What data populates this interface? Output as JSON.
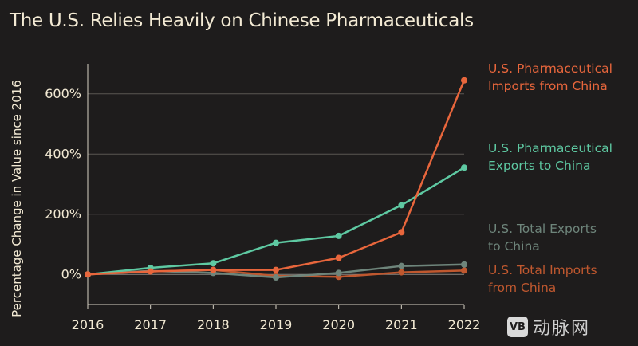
{
  "title": "The U.S. Relies Heavily on Chinese Pharmaceuticals",
  "watermark": {
    "logo": "VB",
    "text": "动脉网"
  },
  "chart_data": {
    "type": "line",
    "title": "The U.S. Relies Heavily on Chinese Pharmaceuticals",
    "xlabel": "",
    "ylabel": "Percentage Change in Value since 2016",
    "x": [
      2016,
      2017,
      2018,
      2019,
      2020,
      2021,
      2022
    ],
    "x_tick_labels": [
      "2016",
      "2017",
      "2018",
      "2019",
      "2020",
      "2021",
      "2022"
    ],
    "ylim": [
      -100,
      700
    ],
    "y_ticks": [
      0,
      200,
      400,
      600
    ],
    "y_tick_labels": [
      "0%",
      "200%",
      "400%",
      "600%"
    ],
    "grid": true,
    "legend_position": "right",
    "series": [
      {
        "name": "U.S. Pharmaceutical Imports from China",
        "label_lines": [
          "U.S. Pharmaceutical",
          "Imports from China"
        ],
        "color": "#e8663c",
        "values": [
          0,
          10,
          15,
          15,
          55,
          140,
          645
        ]
      },
      {
        "name": "U.S. Pharmaceutical Exports to China",
        "label_lines": [
          "U.S. Pharmaceutical",
          "Exports to China"
        ],
        "color": "#5ec9a2",
        "values": [
          0,
          22,
          37,
          105,
          128,
          230,
          355
        ]
      },
      {
        "name": "U.S. Total Exports to China",
        "label_lines": [
          "U.S. Total Exports",
          "to China"
        ],
        "color": "#6e857b",
        "values": [
          0,
          12,
          5,
          -10,
          5,
          28,
          33
        ]
      },
      {
        "name": "U.S. Total Imports from China",
        "label_lines": [
          "U.S. Total Imports",
          "from China"
        ],
        "color": "#c0582f",
        "values": [
          0,
          10,
          15,
          -5,
          -8,
          7,
          13
        ]
      }
    ]
  }
}
